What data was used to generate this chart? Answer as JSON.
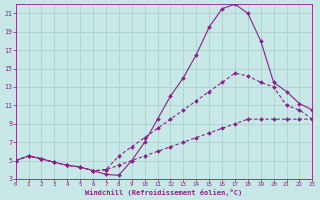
{
  "bg_color": "#c8e8e8",
  "line_color": "#882288",
  "grid_color": "#a8cccc",
  "axis_color": "#882288",
  "xlabel": "Windchill (Refroidissement éolien,°C)",
  "xlim": [
    0,
    23
  ],
  "ylim": [
    3,
    22
  ],
  "xticks": [
    0,
    1,
    2,
    3,
    4,
    5,
    6,
    7,
    8,
    9,
    10,
    11,
    12,
    13,
    14,
    15,
    16,
    17,
    18,
    19,
    20,
    21,
    22,
    23
  ],
  "yticks": [
    3,
    5,
    7,
    9,
    11,
    13,
    15,
    17,
    19,
    21
  ],
  "curve1_x": [
    0,
    1,
    2,
    3,
    4,
    5,
    6,
    7,
    8,
    9,
    10,
    11,
    12,
    13,
    14,
    15,
    16,
    17,
    18,
    19,
    20,
    21,
    22,
    23
  ],
  "curve1_y": [
    5.0,
    5.5,
    5.2,
    4.8,
    4.5,
    4.3,
    3.9,
    3.5,
    3.4,
    5.0,
    7.0,
    9.5,
    12.0,
    14.0,
    16.5,
    19.5,
    21.5,
    22.0,
    21.0,
    18.0,
    13.5,
    12.5,
    11.2,
    10.5
  ],
  "curve2_x": [
    0,
    1,
    2,
    3,
    4,
    5,
    6,
    7,
    8,
    9,
    10,
    11,
    12,
    13,
    14,
    15,
    16,
    17,
    18,
    19,
    20,
    21,
    22,
    23
  ],
  "curve2_y": [
    5.0,
    5.5,
    5.2,
    4.8,
    4.5,
    4.3,
    3.9,
    4.0,
    5.5,
    6.5,
    7.5,
    8.5,
    9.5,
    10.5,
    11.5,
    12.5,
    13.5,
    14.5,
    14.2,
    13.5,
    13.0,
    11.0,
    10.5,
    9.5
  ],
  "curve3_x": [
    0,
    1,
    2,
    3,
    4,
    5,
    6,
    7,
    8,
    9,
    10,
    11,
    12,
    13,
    14,
    15,
    16,
    17,
    18,
    19,
    20,
    21,
    22,
    23
  ],
  "curve3_y": [
    5.0,
    5.5,
    5.2,
    4.8,
    4.5,
    4.3,
    3.9,
    4.0,
    4.5,
    5.0,
    5.5,
    6.0,
    6.5,
    7.0,
    7.5,
    8.0,
    8.5,
    9.0,
    9.5,
    9.5,
    9.5,
    9.5,
    9.5,
    9.5
  ]
}
